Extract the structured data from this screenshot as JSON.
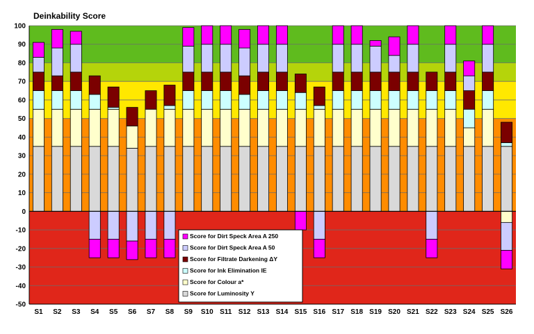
{
  "chart_data": {
    "type": "bar",
    "stacked": true,
    "title": "Deinkability Score",
    "xlabel": "",
    "ylabel": "",
    "ylim": [
      -50,
      100
    ],
    "yticks": [
      -50,
      -40,
      -30,
      -20,
      -10,
      0,
      10,
      20,
      30,
      40,
      50,
      60,
      70,
      80,
      90,
      100
    ],
    "grid": true,
    "legend": "center-bottom",
    "background_bands": [
      {
        "from": -50,
        "to": 0,
        "color": "#e0261a"
      },
      {
        "from": 0,
        "to": 50,
        "color": "#ff8c00"
      },
      {
        "from": 50,
        "to": 70,
        "color": "#ffe800"
      },
      {
        "from": 70,
        "to": 80,
        "color": "#b5d40a"
      },
      {
        "from": 80,
        "to": 100,
        "color": "#5fbb1e"
      }
    ],
    "categories": [
      "S1",
      "S2",
      "S3",
      "S4",
      "S5",
      "S6",
      "S7",
      "S8",
      "S9",
      "S10",
      "S11",
      "S12",
      "S13",
      "S14",
      "S15",
      "S16",
      "S17",
      "S18",
      "S19",
      "S20",
      "S21",
      "S22",
      "S23",
      "S24",
      "S25",
      "S26"
    ],
    "series": [
      {
        "name": "Score for Luminosity Y",
        "color": "#d9d9d9",
        "values": [
          35,
          35,
          35,
          35,
          35,
          34,
          35,
          35,
          35,
          35,
          35,
          35,
          35,
          35,
          35,
          35,
          35,
          35,
          35,
          35,
          35,
          35,
          35,
          35,
          35,
          35
        ]
      },
      {
        "name": "Score for Colour a*",
        "color": "#ffffcc",
        "values": [
          20,
          20,
          20,
          20,
          20,
          12,
          20,
          20,
          20,
          20,
          20,
          20,
          20,
          20,
          20,
          20,
          20,
          20,
          20,
          20,
          20,
          20,
          20,
          10,
          20,
          -6
        ]
      },
      {
        "name": "Score for Ink Elimination IE",
        "color": "#ccffff",
        "values": [
          10,
          10,
          10,
          8,
          1,
          0,
          0,
          2,
          10,
          10,
          10,
          8,
          10,
          10,
          9,
          2,
          10,
          10,
          10,
          10,
          10,
          10,
          10,
          10,
          10,
          2
        ]
      },
      {
        "name": "Score for Filtrate Darkening ΔY",
        "color": "#7b0000",
        "values": [
          10,
          8,
          10,
          10,
          11,
          10,
          10,
          11,
          10,
          10,
          10,
          10,
          10,
          10,
          10,
          10,
          10,
          10,
          10,
          10,
          10,
          10,
          10,
          10,
          10,
          11
        ]
      },
      {
        "name": "Score for Dirt Speck Area A 50",
        "color": "#ccccff",
        "values": [
          8,
          15,
          15,
          -15,
          -15,
          -16,
          -15,
          -15,
          14,
          15,
          15,
          15,
          15,
          15,
          0,
          -15,
          15,
          15,
          14,
          9,
          15,
          -15,
          15,
          8,
          15,
          -15
        ]
      },
      {
        "name": "Score for Dirt Speck Area A 250",
        "color": "#ff00ff",
        "values": [
          8,
          10,
          7,
          -10,
          -10,
          -10,
          -10,
          -10,
          10,
          10,
          10,
          10,
          10,
          10,
          -10,
          -10,
          10,
          10,
          3,
          10,
          10,
          -10,
          10,
          8,
          10,
          -10
        ]
      }
    ]
  }
}
